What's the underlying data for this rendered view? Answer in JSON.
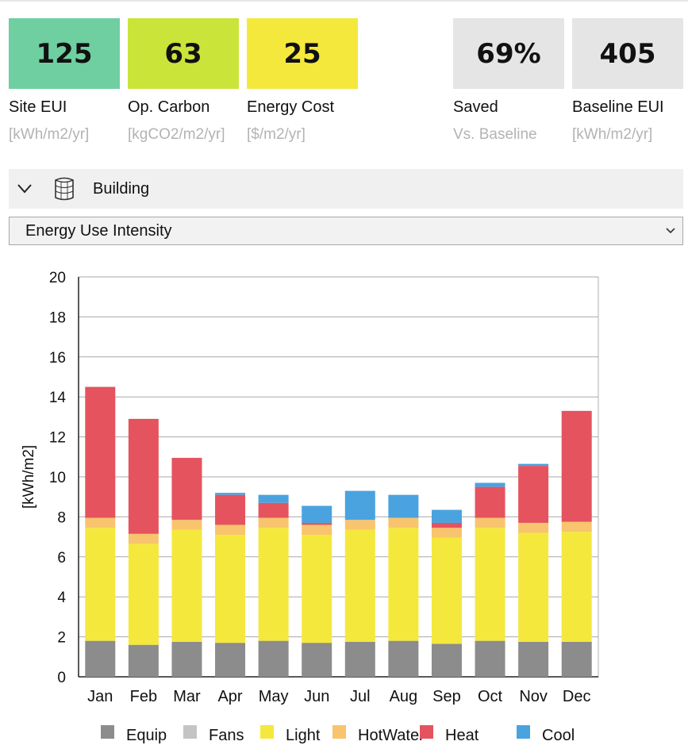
{
  "metrics": [
    {
      "value": "125",
      "label": "Site EUI",
      "unit": "[kWh/m2/yr]",
      "color": "#6fcfa1"
    },
    {
      "value": "63",
      "label": "Op. Carbon",
      "unit": "[kgCO2/m2/yr]",
      "color": "#cbe43a"
    },
    {
      "value": "25",
      "label": "Energy Cost",
      "unit": "[$/m2/yr]",
      "color": "#f5e83c"
    },
    {
      "value": "69%",
      "label": "Saved",
      "unit": "Vs. Baseline",
      "color": "#e5e5e5"
    },
    {
      "value": "405",
      "label": "Baseline EUI",
      "unit": "[kWh/m2/yr]",
      "color": "#e5e5e5"
    }
  ],
  "building": {
    "label": "Building",
    "icon": "building-icon",
    "toggle_icon": "chevron-down-icon"
  },
  "selector": {
    "value": "Energy Use Intensity",
    "icon": "dropdown-arrow-icon"
  },
  "chart_data": {
    "type": "bar",
    "stacked": true,
    "categories": [
      "Jan",
      "Feb",
      "Mar",
      "Apr",
      "May",
      "Jun",
      "Jul",
      "Aug",
      "Sep",
      "Oct",
      "Nov",
      "Dec"
    ],
    "ylabel": "[kWh/m2]",
    "ylim": [
      0,
      20
    ],
    "yticks": [
      0,
      2,
      4,
      6,
      8,
      10,
      12,
      14,
      16,
      18,
      20
    ],
    "grid": true,
    "legend_position": "bottom",
    "series": [
      {
        "name": "Equip",
        "color": "#8c8c8c",
        "values": [
          1.8,
          1.6,
          1.75,
          1.7,
          1.8,
          1.7,
          1.75,
          1.8,
          1.65,
          1.8,
          1.75,
          1.75
        ]
      },
      {
        "name": "Fans",
        "color": "#c4c4c4",
        "values": [
          0,
          0,
          0,
          0,
          0,
          0,
          0,
          0,
          0,
          0,
          0,
          0
        ]
      },
      {
        "name": "Light",
        "color": "#f5e83c",
        "values": [
          5.65,
          5.05,
          5.6,
          5.4,
          5.65,
          5.4,
          5.6,
          5.65,
          5.3,
          5.65,
          5.45,
          5.5
        ]
      },
      {
        "name": "HotWater",
        "color": "#f8c46e",
        "values": [
          0.5,
          0.5,
          0.5,
          0.5,
          0.5,
          0.5,
          0.5,
          0.5,
          0.5,
          0.5,
          0.5,
          0.5
        ]
      },
      {
        "name": "Heat",
        "color": "#e5535f",
        "values": [
          6.55,
          5.75,
          3.1,
          1.5,
          0.75,
          0.1,
          0,
          0,
          0.25,
          1.55,
          2.85,
          5.55
        ]
      },
      {
        "name": "Cool",
        "color": "#4aa3df",
        "values": [
          0,
          0,
          0,
          0.1,
          0.4,
          0.85,
          1.45,
          1.15,
          0.65,
          0.2,
          0.1,
          0
        ]
      }
    ]
  }
}
